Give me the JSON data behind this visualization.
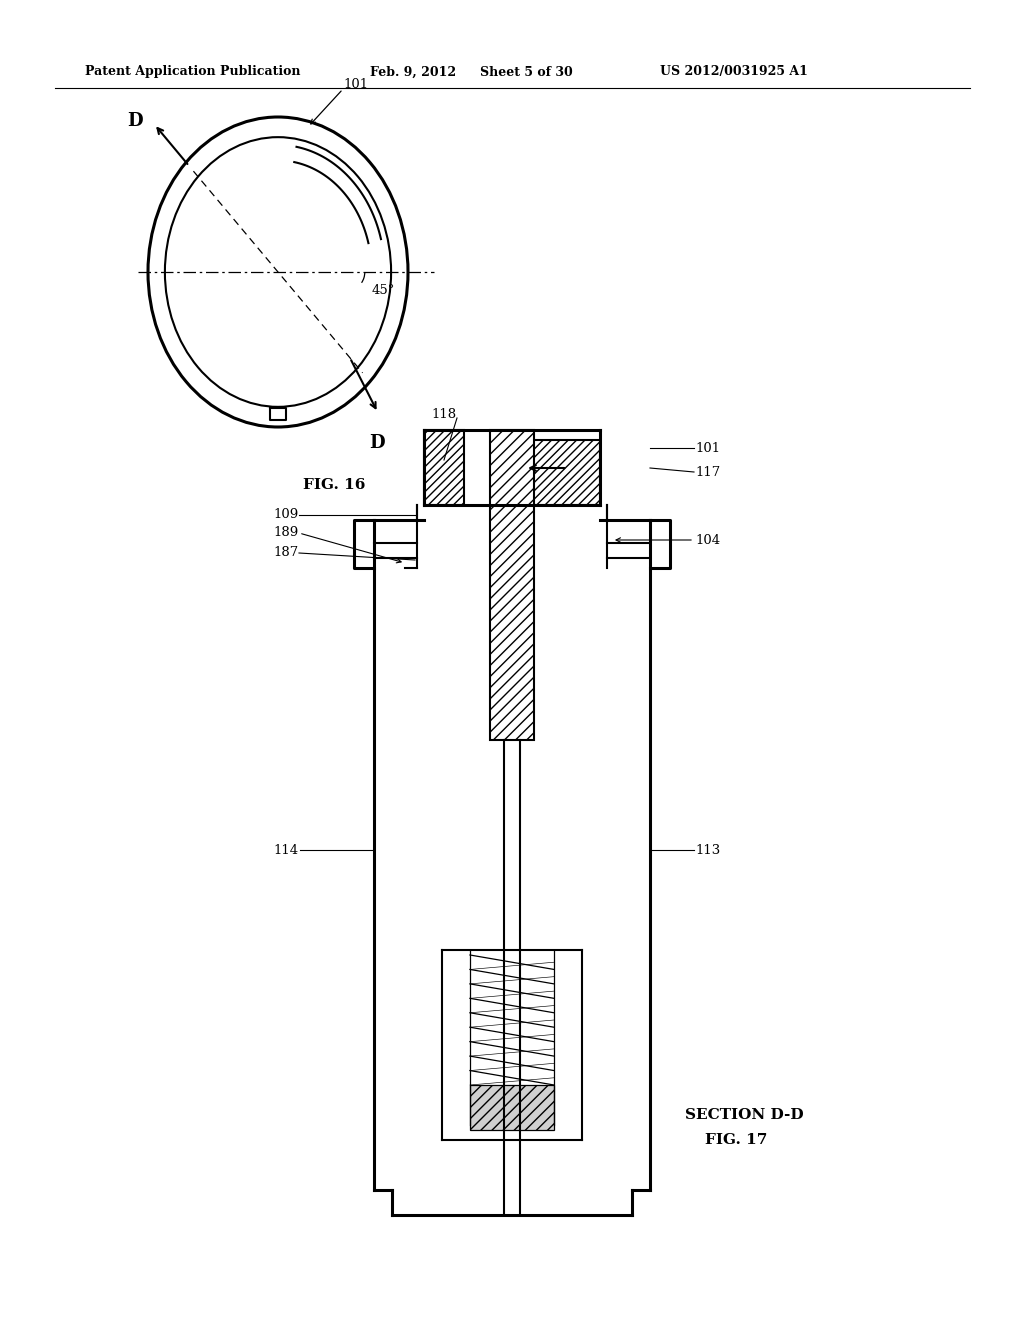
{
  "bg_color": "#ffffff",
  "line_color": "#000000",
  "header_text": "Patent Application Publication",
  "header_date": "Feb. 9, 2012",
  "header_sheet": "Sheet 5 of 30",
  "header_patent": "US 2012/0031925 A1",
  "fig16_label": "FIG. 16",
  "fig17_label": "FIG. 17",
  "section_label": "SECTION D-D"
}
